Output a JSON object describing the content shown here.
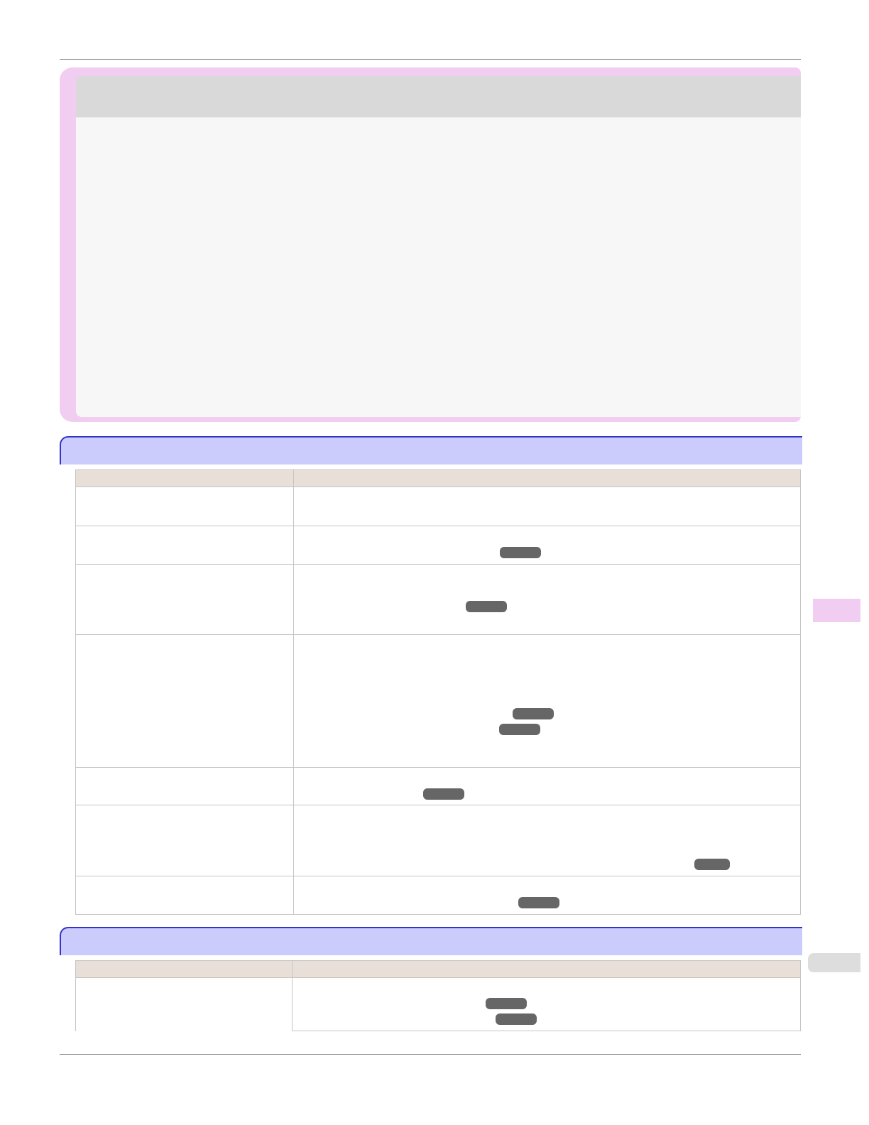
{
  "colors": {
    "note_border": "#f2cdf2",
    "note_header": "#d9d9d9",
    "note_body": "#f7f7f7",
    "section_header": "#ccccfc",
    "section_border": "#3333cc",
    "table_header": "#e8e0d8",
    "reference_badge": "#666666",
    "side_tab_active": "#f2cdf2",
    "side_tab_index": "#dddddd"
  },
  "note": {
    "title": "",
    "body": ""
  },
  "section1": {
    "title": "",
    "table": {
      "headers": [
        "",
        ""
      ],
      "rows": [
        [
          "",
          ""
        ],
        [
          "",
          ""
        ],
        [
          "",
          ""
        ],
        [
          "",
          ""
        ],
        [
          "",
          ""
        ],
        [
          "",
          ""
        ],
        [
          "",
          ""
        ]
      ]
    },
    "badges": [
      "",
      "",
      "",
      "",
      "",
      "",
      ""
    ]
  },
  "section2": {
    "title": "",
    "table": {
      "headers": [
        "",
        ""
      ],
      "rows": [
        [
          "",
          ""
        ]
      ]
    },
    "badges": [
      "",
      ""
    ]
  },
  "side_tabs": [
    "",
    ""
  ]
}
